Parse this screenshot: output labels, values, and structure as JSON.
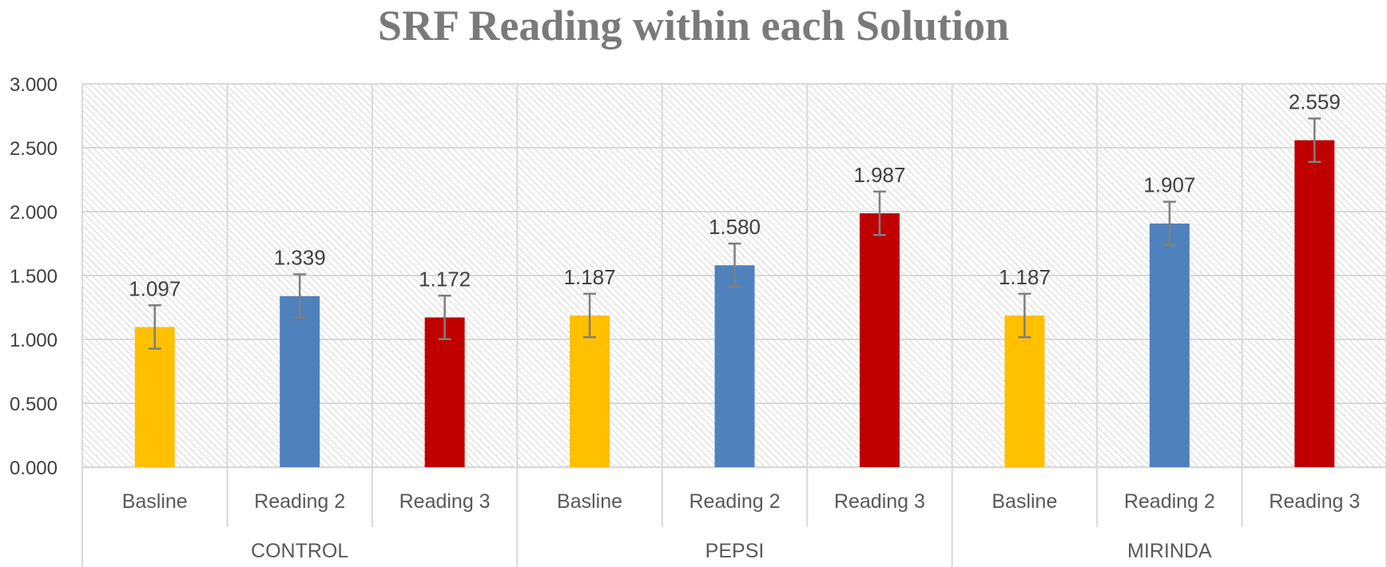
{
  "chart_data": {
    "type": "bar",
    "title": "SRF Reading within each Solution",
    "xlabel": "",
    "ylabel": "",
    "ylim": [
      0,
      3
    ],
    "yticks": [
      "0.000",
      "0.500",
      "1.000",
      "1.500",
      "2.000",
      "2.500",
      "3.000"
    ],
    "grid": true,
    "legend": "none",
    "groups": [
      {
        "name": "CONTROL",
        "bars": [
          {
            "category": "Basline",
            "value": 1.097,
            "label": "1.097",
            "error": 0.17,
            "color": "#FFC000"
          },
          {
            "category": "Reading 2",
            "value": 1.339,
            "label": "1.339",
            "error": 0.17,
            "color": "#4F81BD"
          },
          {
            "category": "Reading 3",
            "value": 1.172,
            "label": "1.172",
            "error": 0.17,
            "color": "#C00000"
          }
        ]
      },
      {
        "name": "PEPSI",
        "bars": [
          {
            "category": "Basline",
            "value": 1.187,
            "label": "1.187",
            "error": 0.17,
            "color": "#FFC000"
          },
          {
            "category": "Reading 2",
            "value": 1.58,
            "label": "1.580",
            "error": 0.17,
            "color": "#4F81BD"
          },
          {
            "category": "Reading 3",
            "value": 1.987,
            "label": "1.987",
            "error": 0.17,
            "color": "#C00000"
          }
        ]
      },
      {
        "name": "MIRINDA",
        "bars": [
          {
            "category": "Basline",
            "value": 1.187,
            "label": "1.187",
            "error": 0.17,
            "color": "#FFC000"
          },
          {
            "category": "Reading 2",
            "value": 1.907,
            "label": "1.907",
            "error": 0.17,
            "color": "#4F81BD"
          },
          {
            "category": "Reading 3",
            "value": 2.559,
            "label": "2.559",
            "error": 0.17,
            "color": "#C00000"
          }
        ]
      }
    ]
  }
}
